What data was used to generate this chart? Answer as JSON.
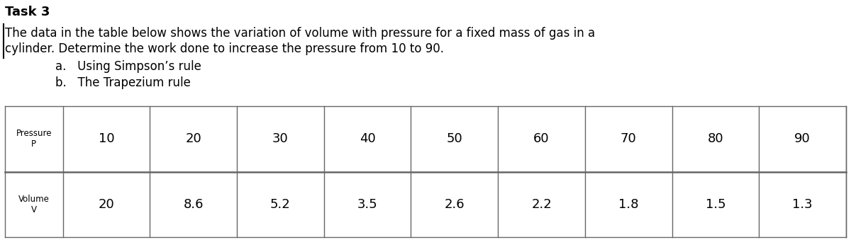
{
  "title": "Task 3",
  "line1": "The data in the table below shows the variation of volume with pressure for a fixed mass of gas in a",
  "line2": "cylinder. Determine the work done to increase the pressure from 10 to 90.",
  "item_a": "a.   Using Simpson’s rule",
  "item_b": "b.   The Trapezium rule",
  "pressure_label": "Pressure\nP",
  "volume_label": "Volume\nV",
  "pressure_values": [
    "10",
    "20",
    "30",
    "40",
    "50",
    "60",
    "70",
    "80",
    "90"
  ],
  "volume_values": [
    "20",
    "8.6",
    "5.2",
    "3.5",
    "2.6",
    "2.2",
    "1.8",
    "1.5",
    "1.3"
  ],
  "bg_color": "#ffffff",
  "text_color": "#000000",
  "table_line_color": "#666666",
  "title_fontsize": 13,
  "body_fontsize": 12,
  "table_label_fontsize": 8.5,
  "table_data_fontsize": 13
}
